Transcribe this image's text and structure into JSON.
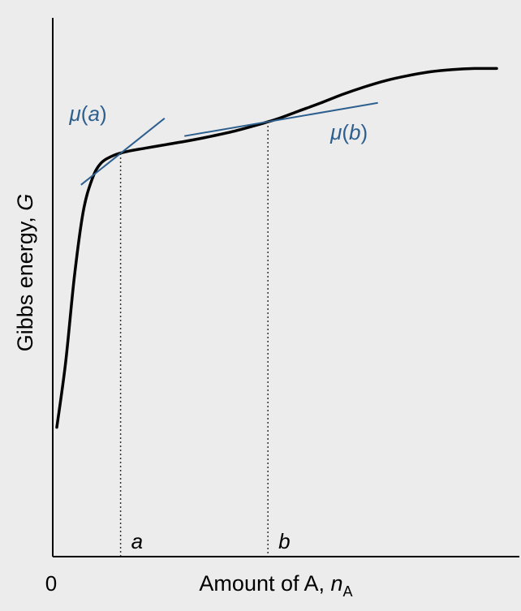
{
  "chart_data": {
    "type": "line",
    "title": "",
    "xlabel": {
      "text": "Amount of A, ",
      "var": "n",
      "sub": "A"
    },
    "ylabel": {
      "text": "Gibbs energy, ",
      "var": "G"
    },
    "x_origin_label": "0",
    "xlim": [
      0,
      1
    ],
    "ylim": [
      0,
      1
    ],
    "grid": false,
    "series": [
      {
        "x": [
          0.0,
          0.02,
          0.04,
          0.06,
          0.08,
          0.1,
          0.13,
          0.16,
          0.2,
          0.25,
          0.3,
          0.35,
          0.4,
          0.45,
          0.5,
          0.55,
          0.6,
          0.65,
          0.7,
          0.75,
          0.8,
          0.85,
          0.9,
          0.95,
          1.0
        ],
        "y": [
          0.24,
          0.36,
          0.52,
          0.64,
          0.7,
          0.73,
          0.745,
          0.752,
          0.758,
          0.765,
          0.772,
          0.78,
          0.789,
          0.8,
          0.812,
          0.827,
          0.842,
          0.858,
          0.872,
          0.884,
          0.893,
          0.9,
          0.904,
          0.906,
          0.906
        ]
      }
    ],
    "tangents": [
      {
        "label_func": "μ(",
        "label_arg": "a",
        "label_close": ")",
        "point_label": "a",
        "x0": 0.145,
        "slope": 0.65,
        "span": [
          -0.09,
          0.1
        ]
      },
      {
        "label_func": "μ(",
        "label_arg": "b",
        "label_close": ")",
        "point_label": "b",
        "x0": 0.48,
        "slope": 0.14,
        "span": [
          -0.19,
          0.25
        ]
      }
    ],
    "colors": {
      "background": "#ececec",
      "curve": "#000000",
      "tangent": "#2d5f8f",
      "label_accent": "#2d5f8f",
      "axis": "#000000"
    }
  }
}
